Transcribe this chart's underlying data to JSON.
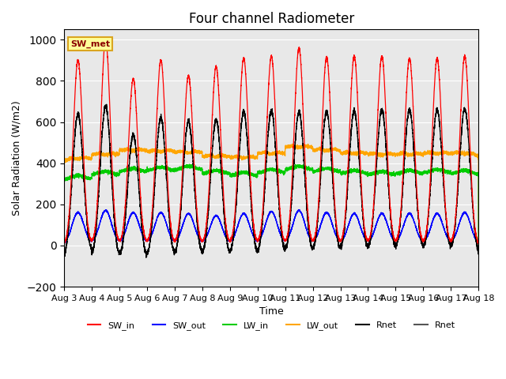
{
  "title": "Four channel Radiometer",
  "xlabel": "Time",
  "ylabel": "Solar Radiation (W/m2)",
  "ylim": [
    -200,
    1050
  ],
  "xlim": [
    0,
    15
  ],
  "xtick_labels": [
    "Aug 3",
    "Aug 4",
    "Aug 5",
    "Aug 6",
    "Aug 7",
    "Aug 8",
    "Aug 9",
    "Aug 10",
    "Aug 11",
    "Aug 12",
    "Aug 13",
    "Aug 14",
    "Aug 15",
    "Aug 16",
    "Aug 17",
    "Aug 18"
  ],
  "annotation_text": "SW_met",
  "annotation_color": "#8B0000",
  "annotation_bg": "#FFFF99",
  "annotation_border": "#DAA520",
  "bg_color": "#E8E8E8",
  "SW_in_color": "#FF0000",
  "SW_out_color": "#0000FF",
  "LW_in_color": "#00CC00",
  "LW_out_color": "#FFA500",
  "Rnet_color": "#000000",
  "Rnet2_color": "#555555",
  "SW_in_peaks": [
    900,
    1000,
    810,
    900,
    825,
    870,
    910,
    920,
    960,
    915,
    920,
    920,
    910,
    910,
    920
  ],
  "SW_out_peaks": [
    160,
    170,
    160,
    160,
    155,
    145,
    155,
    165,
    170,
    160,
    155,
    155,
    155,
    155,
    160
  ],
  "LW_in_base": [
    315,
    335,
    350,
    355,
    360,
    340,
    330,
    345,
    360,
    350,
    340,
    335,
    340,
    345,
    340
  ],
  "LW_out_base": [
    390,
    410,
    430,
    425,
    420,
    400,
    395,
    415,
    445,
    430,
    415,
    410,
    410,
    415,
    415
  ],
  "Rnet_peaks": [
    640,
    680,
    540,
    620,
    605,
    610,
    650,
    655,
    650,
    650,
    655,
    660,
    660,
    660,
    665
  ],
  "Rnet_night": [
    -80,
    -100,
    -100,
    -95,
    -90,
    -90,
    -90,
    -85,
    -80,
    -75,
    -70,
    -65,
    -65,
    -65,
    -65
  ],
  "title_fontsize": 12,
  "label_fontsize": 9,
  "tick_fontsize": 8,
  "days": 15,
  "pts_per_day": 480
}
